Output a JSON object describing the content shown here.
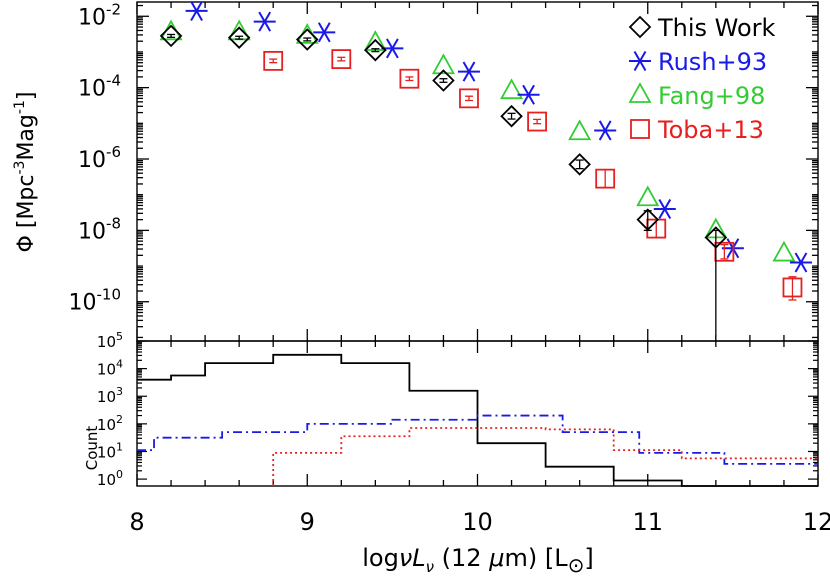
{
  "chart_data": [
    {
      "type": "scatter",
      "panel": "top",
      "title": "",
      "xlabel_parts": {
        "prefix": "log",
        "symbol": "νL",
        "sub": "ν",
        "rest": " (12 ",
        "mu": "μ",
        "m": "m) [L",
        "sun": "⊙",
        "close": "]"
      },
      "ylabel_parts": {
        "phi": "Φ",
        "open": " [Mpc",
        "exp1": "-3",
        "mag": "Mag",
        "exp2": "-1",
        "close": "]"
      },
      "xlim": [
        8,
        12
      ],
      "ylim_log10": [
        -11.1,
        -1.6
      ],
      "yticks": [
        {
          "log": -2,
          "base": "10",
          "exp": "-2"
        },
        {
          "log": -4,
          "base": "10",
          "exp": "-4"
        },
        {
          "log": -6,
          "base": "10",
          "exp": "-6"
        },
        {
          "log": -8,
          "base": "10",
          "exp": "-8"
        },
        {
          "log": -10,
          "base": "10",
          "exp": "-10"
        }
      ],
      "legend_position": "top-right",
      "series": [
        {
          "name": "This Work",
          "marker": "diamond",
          "color": "#000000",
          "x": [
            8.2,
            8.6,
            9.0,
            9.4,
            9.8,
            10.2,
            10.6,
            11.0,
            11.4
          ],
          "log_phi": [
            -2.55,
            -2.6,
            -2.65,
            -2.95,
            -3.8,
            -4.8,
            -6.15,
            -7.7,
            -8.2
          ],
          "err_lo_log": [
            0.04,
            0.04,
            0.04,
            0.04,
            0.05,
            0.08,
            0.12,
            0.3,
            3.5
          ],
          "err_hi_log": [
            0.04,
            0.04,
            0.04,
            0.04,
            0.05,
            0.08,
            0.12,
            0.25,
            0.2
          ]
        },
        {
          "name": "Rush+93",
          "marker": "asterisk",
          "color": "#1a1ae6",
          "x": [
            8.35,
            8.75,
            9.1,
            9.5,
            9.95,
            10.3,
            10.75,
            11.1,
            11.5,
            11.9
          ],
          "log_phi": [
            -1.85,
            -2.15,
            -2.45,
            -2.9,
            -3.55,
            -4.2,
            -5.2,
            -7.4,
            -8.5,
            -8.9
          ]
        },
        {
          "name": "Fang+98",
          "marker": "triangle",
          "color": "#33cc33",
          "x": [
            8.2,
            8.6,
            9.0,
            9.4,
            9.8,
            10.2,
            10.6,
            11.0,
            11.4,
            11.8
          ],
          "log_phi": [
            -2.45,
            -2.45,
            -2.55,
            -2.75,
            -3.4,
            -4.1,
            -5.25,
            -7.1,
            -8.0,
            -8.65
          ]
        },
        {
          "name": "Toba+13",
          "marker": "square",
          "color": "#e62020",
          "x": [
            8.8,
            9.2,
            9.6,
            9.95,
            10.35,
            10.75,
            11.05,
            11.45,
            11.85
          ],
          "log_phi": [
            -3.25,
            -3.2,
            -3.75,
            -4.3,
            -4.95,
            -6.55,
            -7.95,
            -8.6,
            -9.6
          ],
          "err_lo_log": [
            0.05,
            0.05,
            0.05,
            0.06,
            0.06,
            0.25,
            0.25,
            0.2,
            0.35
          ],
          "err_hi_log": [
            0.05,
            0.05,
            0.05,
            0.06,
            0.06,
            0.25,
            0.25,
            0.2,
            0.3
          ]
        }
      ]
    },
    {
      "type": "step",
      "panel": "bottom",
      "ylabel": "Count",
      "xlim": [
        8,
        12
      ],
      "ylim_log10": [
        -0.25,
        5
      ],
      "xticks": [
        "8",
        "9",
        "10",
        "11",
        "12"
      ],
      "yticks": [
        {
          "log": 0,
          "base": "10",
          "exp": "0"
        },
        {
          "log": 1,
          "base": "10",
          "exp": "1"
        },
        {
          "log": 2,
          "base": "10",
          "exp": "2"
        },
        {
          "log": 3,
          "base": "10",
          "exp": "3"
        },
        {
          "log": 4,
          "base": "10",
          "exp": "4"
        },
        {
          "log": 5,
          "base": "10",
          "exp": "5"
        }
      ],
      "series": [
        {
          "name": "This Work",
          "style": "solid",
          "color": "#000000",
          "edges": [
            8.0,
            8.2,
            8.4,
            8.8,
            9.2,
            9.6,
            10.0,
            10.4,
            10.8,
            11.2,
            11.6,
            12.0
          ],
          "log_counts": [
            3.6,
            3.75,
            4.2,
            4.5,
            4.2,
            3.2,
            1.3,
            0.45,
            -0.05,
            -0.25,
            -0.25
          ]
        },
        {
          "name": "Rush+93",
          "style": "dashdot",
          "color": "#1a1ae6",
          "edges": [
            8.0,
            8.1,
            8.5,
            9.0,
            9.5,
            10.0,
            10.5,
            10.95,
            11.45,
            12.0
          ],
          "log_counts": [
            1.05,
            1.5,
            1.7,
            2.0,
            2.15,
            2.3,
            1.7,
            0.95,
            0.55
          ]
        },
        {
          "name": "Toba+13",
          "style": "dotted",
          "color": "#e62020",
          "edges": [
            8.8,
            9.2,
            9.6,
            10.4,
            10.8,
            11.2,
            12.0
          ],
          "log_counts": [
            0.95,
            1.55,
            1.85,
            1.8,
            1.05,
            0.75
          ]
        }
      ],
      "xlabel": ""
    }
  ]
}
